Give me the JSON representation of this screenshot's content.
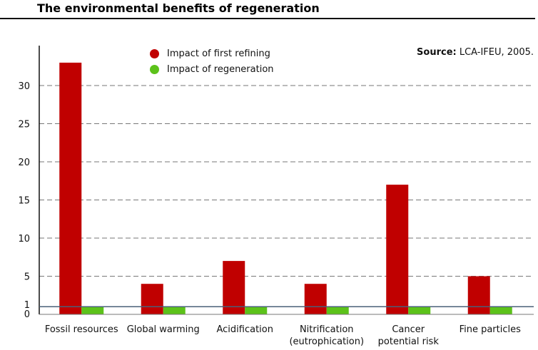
{
  "title": "The environmental benefits of regeneration",
  "source": {
    "label": "Source:",
    "text": " LCA-IFEU, 2005."
  },
  "chart_data": {
    "type": "bar",
    "categories": [
      "Fossil resources",
      "Global warming",
      "Acidification",
      "Nitrification\n(eutrophication)",
      "Cancer\npotential risk",
      "Fine particles"
    ],
    "series": [
      {
        "name": "Impact of first refining",
        "color": "#c00000",
        "values": [
          33,
          4,
          7,
          4,
          17,
          5
        ]
      },
      {
        "name": "Impact of regeneration",
        "color": "#5cc21a",
        "values": [
          1,
          1,
          1,
          1,
          1,
          1
        ]
      }
    ],
    "yticks": [
      0,
      1,
      5,
      10,
      15,
      20,
      25,
      30
    ],
    "ylim": [
      0,
      35
    ],
    "grid": true,
    "legend_position": "top-left"
  }
}
